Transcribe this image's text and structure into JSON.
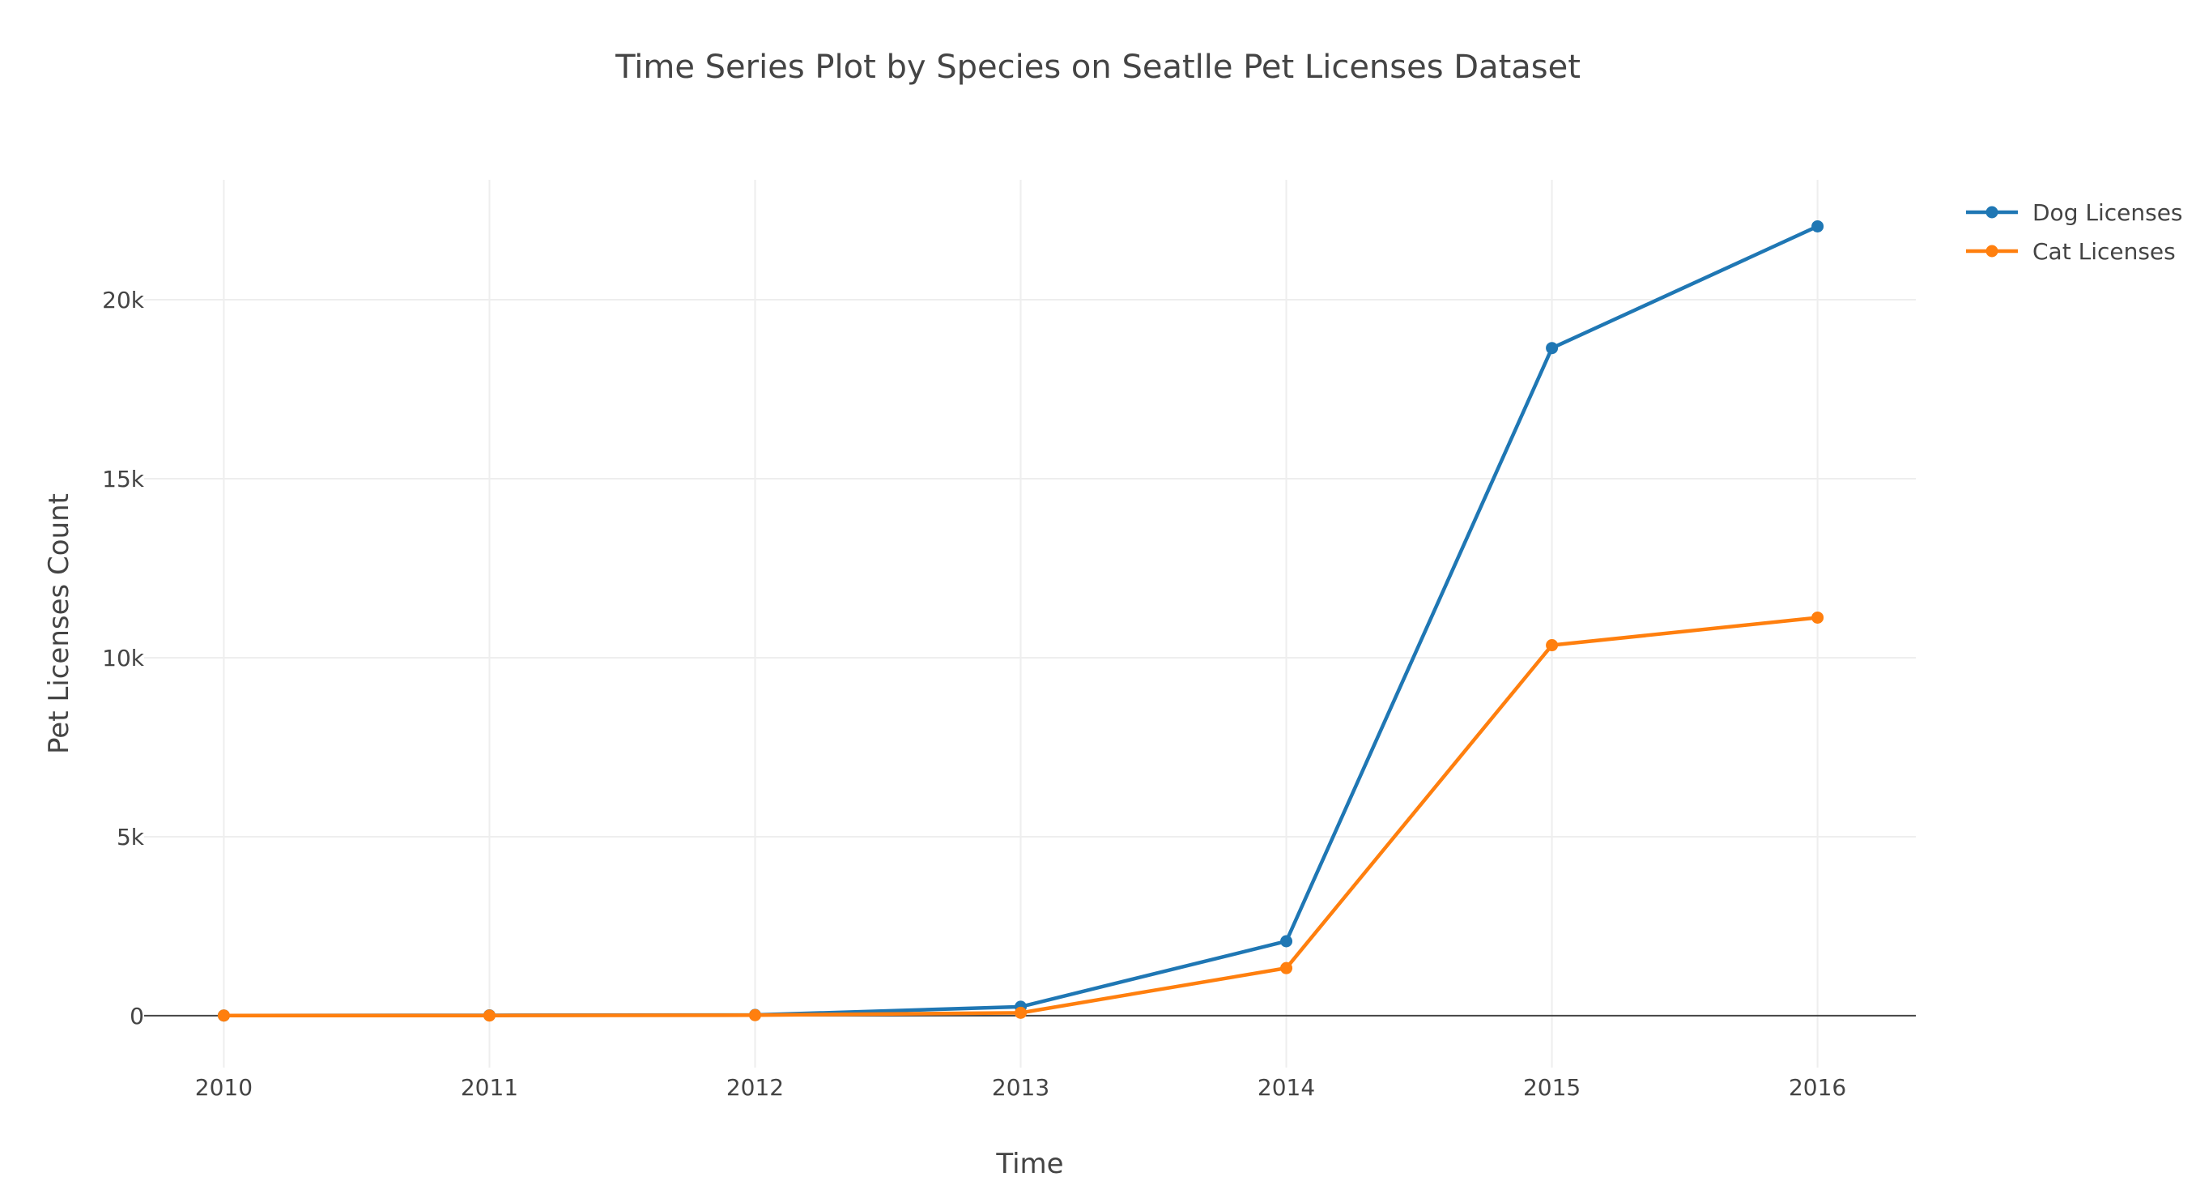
{
  "chart_data": {
    "type": "line",
    "title": "Time Series Plot by Species on Seatlle Pet Licenses Dataset",
    "xlabel": "Time",
    "ylabel": "Pet Licenses Count",
    "x": [
      2010,
      2011,
      2012,
      2013,
      2014,
      2015,
      2016
    ],
    "x_tick_labels": [
      "2010",
      "2011",
      "2012",
      "2013",
      "2014",
      "2015",
      "2016"
    ],
    "y_ticks": [
      0,
      5000,
      10000,
      15000,
      20000
    ],
    "y_tick_labels": [
      "0",
      "5k",
      "10k",
      "15k",
      "20k"
    ],
    "ylim": [
      -1450,
      23350
    ],
    "xlim": [
      2009.7,
      2016.37
    ],
    "grid": true,
    "legend_placement": "top-right",
    "series": [
      {
        "name": "Dog Licenses",
        "color": "#1f77b4",
        "values": [
          5,
          10,
          20,
          250,
          2080,
          18650,
          22050
        ]
      },
      {
        "name": "Cat Licenses",
        "color": "#ff7f0e",
        "values": [
          5,
          5,
          15,
          80,
          1330,
          10350,
          11120
        ]
      }
    ]
  }
}
